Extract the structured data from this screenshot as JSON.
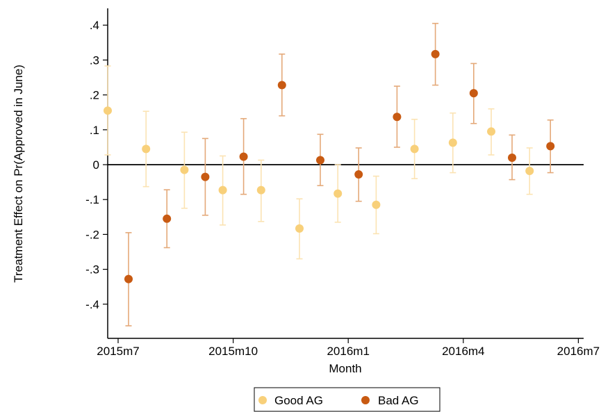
{
  "chart_data": {
    "type": "scatter",
    "title": "",
    "xlabel": "Month",
    "ylabel": "Treatment Effect on Pr(Approved in June)",
    "x_ticks": [
      "2015m7",
      "2015m10",
      "2016m1",
      "2016m4",
      "2016m7"
    ],
    "y_ticks": [
      ".4",
      ".3",
      ".2",
      ".1",
      "0",
      "-.1",
      "-.2",
      "-.3",
      "-.4"
    ],
    "y_tick_values": [
      0.4,
      0.3,
      0.2,
      0.1,
      0,
      -0.1,
      -0.2,
      -0.3,
      -0.4
    ],
    "ylim": [
      -0.46,
      0.45
    ],
    "reference_line": 0,
    "legend_position": "bottom",
    "months": [
      "2015m7",
      "2015m8",
      "2015m9",
      "2015m10",
      "2015m11",
      "2015m12",
      "2016m1",
      "2016m2",
      "2016m3",
      "2016m4",
      "2016m5",
      "2016m6"
    ],
    "series": [
      {
        "name": "Good AG",
        "color": "#f8d07a",
        "values": [
          0.155,
          0.045,
          -0.015,
          -0.073,
          -0.073,
          -0.183,
          -0.083,
          -0.115,
          0.045,
          0.063,
          0.095,
          -0.018
        ],
        "ci_low": [
          0.028,
          -0.063,
          -0.125,
          -0.173,
          -0.163,
          -0.27,
          -0.165,
          -0.198,
          -0.04,
          -0.023,
          0.028,
          -0.085
        ],
        "ci_high": [
          0.283,
          0.153,
          0.093,
          0.025,
          0.013,
          -0.098,
          0.0,
          -0.033,
          0.13,
          0.148,
          0.16,
          0.048
        ]
      },
      {
        "name": "Bad AG",
        "color": "#c85a12",
        "values": [
          -0.328,
          -0.155,
          -0.035,
          0.023,
          0.228,
          0.013,
          -0.028,
          0.137,
          0.317,
          0.205,
          0.02,
          0.053
        ],
        "ci_low": [
          -0.462,
          -0.238,
          -0.145,
          -0.085,
          0.14,
          -0.06,
          -0.105,
          0.05,
          0.228,
          0.118,
          -0.043,
          -0.023
        ],
        "ci_high": [
          -0.195,
          -0.072,
          0.075,
          0.132,
          0.317,
          0.087,
          0.048,
          0.225,
          0.405,
          0.29,
          0.085,
          0.128
        ]
      }
    ]
  }
}
